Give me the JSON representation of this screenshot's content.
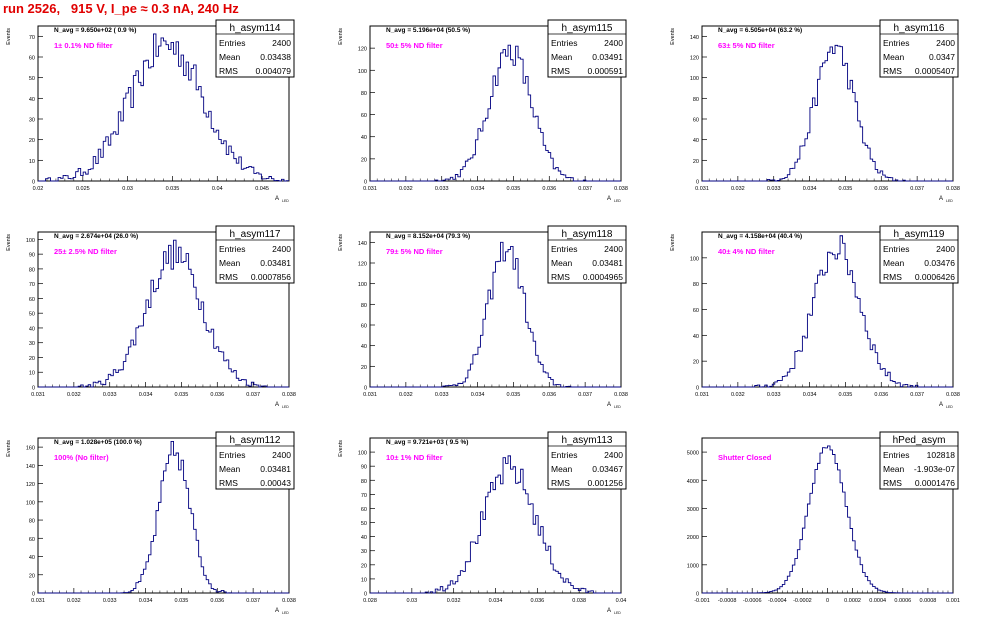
{
  "page": {
    "title": "run 2526,   915 V, I_pe ≈ 0.3 nA, 240 Hz"
  },
  "stats_labels": {
    "entries": "Entries",
    "mean": "Mean",
    "rms": "RMS"
  },
  "colors": {
    "histogram": "#000080",
    "annotation": "#ff00ff",
    "title": "#e00000",
    "axes": "#000000"
  },
  "chart_data": [
    {
      "type": "histogram",
      "name": "h_asym114",
      "header": "N_avg = 9.650e+02 ( 0.9 %)",
      "annotation": "1± 0.1% ND filter",
      "stats": {
        "entries": "2400",
        "mean": "0.03438",
        "rms": "0.004079"
      },
      "ylabel": "Events",
      "xlabel": "A_{LED}",
      "xlim": [
        0.02,
        0.048
      ],
      "ylim": [
        0,
        75
      ],
      "xticks": [
        "0.02",
        "0.025",
        "0.03",
        "0.035",
        "0.04",
        "0.045"
      ],
      "xtick_values": [
        0.02,
        0.025,
        0.03,
        0.035,
        0.04,
        0.045
      ],
      "yticks": [
        0,
        10,
        20,
        30,
        40,
        50,
        60,
        70
      ],
      "mean": 0.03438,
      "sigma": 0.004079,
      "peak": 66,
      "bins": 100
    },
    {
      "type": "histogram",
      "name": "h_asym115",
      "header": "N_avg = 5.196e+04 (50.5 %)",
      "annotation": "50± 5% ND filter",
      "stats": {
        "entries": "2400",
        "mean": "0.03491",
        "rms": "0.000591"
      },
      "ylabel": "Events",
      "xlabel": "A_{LED}",
      "xlim": [
        0.031,
        0.038
      ],
      "ylim": [
        0,
        140
      ],
      "xticks": [
        "0.031",
        "0.032",
        "0.033",
        "0.034",
        "0.035",
        "0.036",
        "0.037",
        "0.038"
      ],
      "xtick_values": [
        0.031,
        0.032,
        0.033,
        0.034,
        0.035,
        0.036,
        0.037,
        0.038
      ],
      "yticks": [
        0,
        20,
        40,
        60,
        80,
        100,
        120
      ],
      "mean": 0.03491,
      "sigma": 0.000591,
      "peak": 118,
      "bins": 100
    },
    {
      "type": "histogram",
      "name": "h_asym116",
      "header": "N_avg = 6.505e+04 (63.2 %)",
      "annotation": "63± 5% ND filter",
      "stats": {
        "entries": "2400",
        "mean": "0.0347",
        "rms": "0.0005407"
      },
      "ylabel": "Events",
      "xlabel": "A_{LED}",
      "xlim": [
        0.031,
        0.038
      ],
      "ylim": [
        0,
        150
      ],
      "xticks": [
        "0.031",
        "0.032",
        "0.033",
        "0.034",
        "0.035",
        "0.036",
        "0.037",
        "0.038"
      ],
      "xtick_values": [
        0.031,
        0.032,
        0.033,
        0.034,
        0.035,
        0.036,
        0.037,
        0.038
      ],
      "yticks": [
        0,
        20,
        40,
        60,
        80,
        100,
        120,
        140
      ],
      "mean": 0.0347,
      "sigma": 0.0005407,
      "peak": 130,
      "bins": 100
    },
    {
      "type": "histogram",
      "name": "h_asym117",
      "header": "N_avg = 2.674e+04 (26.0 %)",
      "annotation": "25± 2.5% ND filter",
      "stats": {
        "entries": "2400",
        "mean": "0.03481",
        "rms": "0.0007856"
      },
      "ylabel": "Events",
      "xlabel": "A_{LED}",
      "xlim": [
        0.031,
        0.038
      ],
      "ylim": [
        0,
        105
      ],
      "xticks": [
        "0.031",
        "0.032",
        "0.033",
        "0.034",
        "0.035",
        "0.036",
        "0.037",
        "0.038"
      ],
      "xtick_values": [
        0.031,
        0.032,
        0.033,
        0.034,
        0.035,
        0.036,
        0.037,
        0.038
      ],
      "yticks": [
        0,
        10,
        20,
        30,
        40,
        50,
        60,
        70,
        80,
        90,
        100
      ],
      "mean": 0.03481,
      "sigma": 0.0007856,
      "peak": 90,
      "bins": 100
    },
    {
      "type": "histogram",
      "name": "h_asym118",
      "header": "N_avg = 8.152e+04 (79.3 %)",
      "annotation": "79± 5% ND filter",
      "stats": {
        "entries": "2400",
        "mean": "0.03481",
        "rms": "0.0004965"
      },
      "ylabel": "Events",
      "xlabel": "A_{LED}",
      "xlim": [
        0.031,
        0.038
      ],
      "ylim": [
        0,
        150
      ],
      "xticks": [
        "0.031",
        "0.032",
        "0.033",
        "0.034",
        "0.035",
        "0.036",
        "0.037",
        "0.038"
      ],
      "xtick_values": [
        0.031,
        0.032,
        0.033,
        0.034,
        0.035,
        0.036,
        0.037,
        0.038
      ],
      "yticks": [
        0,
        20,
        40,
        60,
        80,
        100,
        120,
        140
      ],
      "mean": 0.03481,
      "sigma": 0.0004965,
      "peak": 135,
      "bins": 100
    },
    {
      "type": "histogram",
      "name": "h_asym119",
      "header": "N_avg = 4.158e+04 (40.4 %)",
      "annotation": "40± 4% ND filter",
      "stats": {
        "entries": "2400",
        "mean": "0.03476",
        "rms": "0.0006426"
      },
      "ylabel": "Events",
      "xlabel": "A_{LED}",
      "xlim": [
        0.031,
        0.038
      ],
      "ylim": [
        0,
        120
      ],
      "xticks": [
        "0.031",
        "0.032",
        "0.033",
        "0.034",
        "0.035",
        "0.036",
        "0.037",
        "0.038"
      ],
      "xtick_values": [
        0.031,
        0.032,
        0.033,
        0.034,
        0.035,
        0.036,
        0.037,
        0.038
      ],
      "yticks": [
        0,
        20,
        40,
        60,
        80,
        100
      ],
      "mean": 0.03476,
      "sigma": 0.0006426,
      "peak": 108,
      "bins": 100
    },
    {
      "type": "histogram",
      "name": "h_asym112",
      "header": "N_avg = 1.028e+05 (100.0 %)",
      "annotation": "100% (No filter)",
      "stats": {
        "entries": "2400",
        "mean": "0.03481",
        "rms": "0.00043"
      },
      "ylabel": "Events",
      "xlabel": "A_{LED}",
      "xlim": [
        0.031,
        0.038
      ],
      "ylim": [
        0,
        170
      ],
      "xticks": [
        "0.031",
        "0.032",
        "0.033",
        "0.034",
        "0.035",
        "0.036",
        "0.037",
        "0.038"
      ],
      "xtick_values": [
        0.031,
        0.032,
        0.033,
        0.034,
        0.035,
        0.036,
        0.037,
        0.038
      ],
      "yticks": [
        0,
        20,
        40,
        60,
        80,
        100,
        120,
        140,
        160
      ],
      "mean": 0.03481,
      "sigma": 0.00043,
      "peak": 155,
      "bins": 100
    },
    {
      "type": "histogram",
      "name": "h_asym113",
      "header": "N_avg = 9.721e+03 ( 9.5 %)",
      "annotation": "10± 1% ND filter",
      "stats": {
        "entries": "2400",
        "mean": "0.03467",
        "rms": "0.001256"
      },
      "ylabel": "Events",
      "xlabel": "A_{LED}",
      "xlim": [
        0.028,
        0.04
      ],
      "ylim": [
        0,
        110
      ],
      "xticks": [
        "0.028",
        "0.03",
        "0.032",
        "0.034",
        "0.036",
        "0.038",
        "0.04"
      ],
      "xtick_values": [
        0.028,
        0.03,
        0.032,
        0.034,
        0.036,
        0.038,
        0.04
      ],
      "yticks": [
        0,
        10,
        20,
        30,
        40,
        50,
        60,
        70,
        80,
        90,
        100
      ],
      "mean": 0.03467,
      "sigma": 0.001256,
      "peak": 88,
      "bins": 100
    },
    {
      "type": "histogram",
      "name": "hPed_asym",
      "header": "",
      "annotation": "Shutter Closed",
      "stats": {
        "entries": "102818",
        "mean": "-1.903e-07",
        "rms": "0.0001476"
      },
      "ylabel": "",
      "xlabel": "",
      "xlim": [
        -0.001,
        0.001
      ],
      "ylim": [
        0,
        5500
      ],
      "xticks": [
        "-0.001",
        "-0.0008",
        "-0.0006",
        "-0.0004",
        "-0.0002",
        "0",
        "0.0002",
        "0.0004",
        "0.0006",
        "0.0008",
        "0.001"
      ],
      "xtick_values": [
        -0.001,
        -0.0008,
        -0.0006,
        -0.0004,
        -0.0002,
        0,
        0.0002,
        0.0004,
        0.0006,
        0.0008,
        0.001
      ],
      "yticks": [
        0,
        1000,
        2000,
        3000,
        4000,
        5000
      ],
      "mean": 0.0,
      "sigma": 0.0001476,
      "peak": 5200,
      "bins": 100
    }
  ]
}
